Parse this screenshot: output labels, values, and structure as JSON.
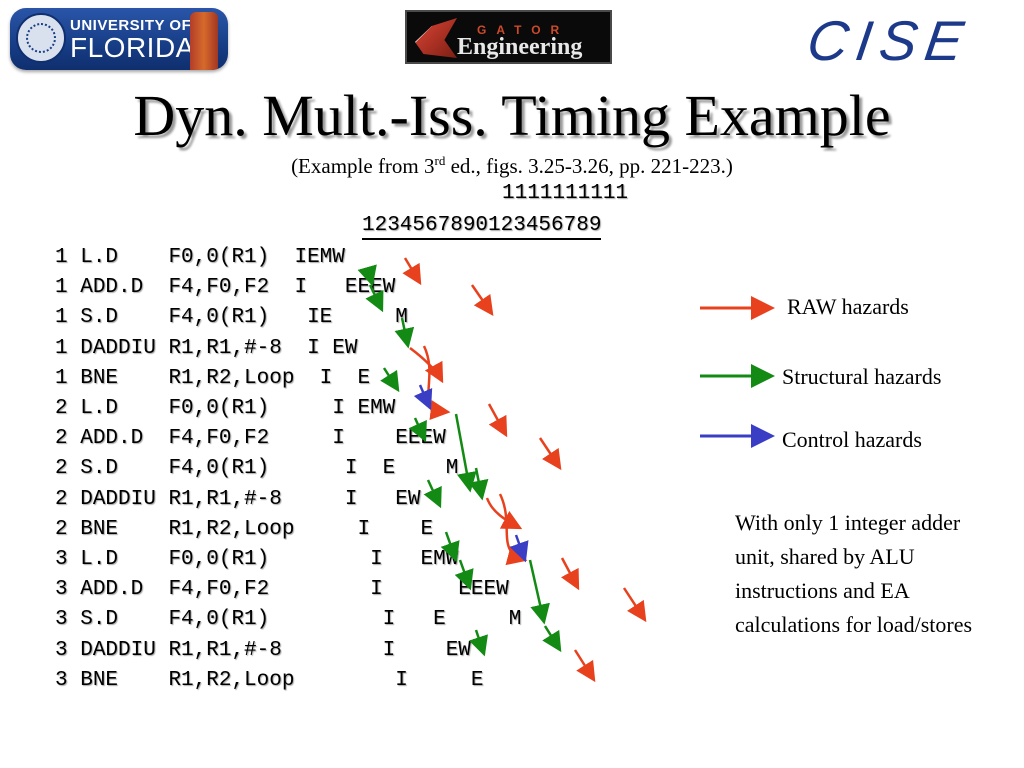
{
  "logos": {
    "uf": {
      "line1": "UNIVERSITY OF",
      "line2": "FLORIDA"
    },
    "gator_engineering": {
      "top": "GATOR",
      "word": "Engineering"
    },
    "cise": "CISE"
  },
  "title": "Dyn. Mult.-Iss. Timing Example",
  "subtitle": {
    "before": "(Example from 3",
    "sup": "rd",
    "after": " ed., figs. 3.25-3.26, pp. 221-223.)"
  },
  "cycle_header": {
    "tens": "1111111111",
    "units": "1234567890123456789"
  },
  "instructions": [
    {
      "iter": "1",
      "op": "L.D",
      "args": "F0,0(R1)",
      "timing": "IEMW"
    },
    {
      "iter": "1",
      "op": "ADD.D",
      "args": "F4,F0,F2",
      "timing": "I   EEEW"
    },
    {
      "iter": "1",
      "op": "S.D",
      "args": "F4,0(R1)",
      "timing": " IE     M"
    },
    {
      "iter": "1",
      "op": "DADDIU",
      "args": "R1,R1,#-8",
      "timing": " I EW"
    },
    {
      "iter": "1",
      "op": "BNE",
      "args": "R1,R2,Loop",
      "timing": "  I  E"
    },
    {
      "iter": "2",
      "op": "L.D",
      "args": "F0,0(R1)",
      "timing": "   I EMW"
    },
    {
      "iter": "2",
      "op": "ADD.D",
      "args": "F4,F0,F2",
      "timing": "   I    EEEW"
    },
    {
      "iter": "2",
      "op": "S.D",
      "args": "F4,0(R1)",
      "timing": "    I  E    M"
    },
    {
      "iter": "2",
      "op": "DADDIU",
      "args": "R1,R1,#-8",
      "timing": "    I   EW"
    },
    {
      "iter": "2",
      "op": "BNE",
      "args": "R1,R2,Loop",
      "timing": "     I    E"
    },
    {
      "iter": "3",
      "op": "L.D",
      "args": "F0,0(R1)",
      "timing": "      I   EMW"
    },
    {
      "iter": "3",
      "op": "ADD.D",
      "args": "F4,F0,F2",
      "timing": "      I      EEEW"
    },
    {
      "iter": "3",
      "op": "S.D",
      "args": "F4,0(R1)",
      "timing": "       I   E     M"
    },
    {
      "iter": "3",
      "op": "DADDIU",
      "args": "R1,R1,#-8",
      "timing": "       I    EW"
    },
    {
      "iter": "3",
      "op": "BNE",
      "args": "R1,R2,Loop",
      "timing": "        I     E"
    }
  ],
  "legend": {
    "raw": {
      "label": "RAW hazards",
      "color": "#e8411e"
    },
    "structural": {
      "label": "Structural hazards",
      "color": "#138a13"
    },
    "control": {
      "label": "Control hazards",
      "color": "#3a3ec4"
    }
  },
  "note": "With only 1 integer adder unit, shared by ALU instructions and EA calculations for load/stores"
}
